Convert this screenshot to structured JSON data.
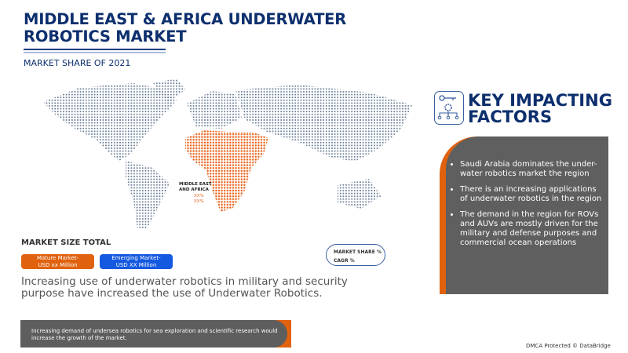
{
  "header": {
    "title": "MIDDLE EAST & AFRICA UNDERWATER ROBOTICS MARKET",
    "subtitle": "MARKET SHARE OF 2021"
  },
  "map": {
    "region_label_1": "MIDDLE EAST",
    "region_label_2": "AND AFRICA",
    "value_1": "XX%",
    "value_2": "XX%",
    "colors": {
      "highlight": "#e8641b",
      "base": "#6b7f99"
    }
  },
  "market_size": {
    "heading": "MARKET SIZE TOTAL",
    "mature_line1": "Mature Market-",
    "mature_line2": "USD xx Million",
    "emerging_line1": "Emerging Market-",
    "emerging_line2": "USD XX Million"
  },
  "legend": {
    "share": "MARKET SHARE %",
    "cagr": "CAGR %"
  },
  "summary": "Increasing use of underwater robotics in military and security purpose have increased the use of Underwater Robotics.",
  "bottom_note": "Increasing demand of undersea robotics for sea exploration and scientific research would increase the growth of the market.",
  "factors": {
    "title_1": "KEY IMPACTING",
    "title_2": "FACTORS",
    "items": [
      "Saudi Arabia dominates the under-water robotics market the region",
      "There is an increasing applications of underwater robotics in the region",
      "The demand in the region for ROVs and AUVs are mostly driven for the military and defense purposes and commercial ocean operations"
    ]
  },
  "footer": "DMCA Protected © DataBridge",
  "colors": {
    "navy": "#0d2f6e",
    "orange": "#e0620f",
    "blue": "#1559e0",
    "panel": "#5f5f5f"
  }
}
